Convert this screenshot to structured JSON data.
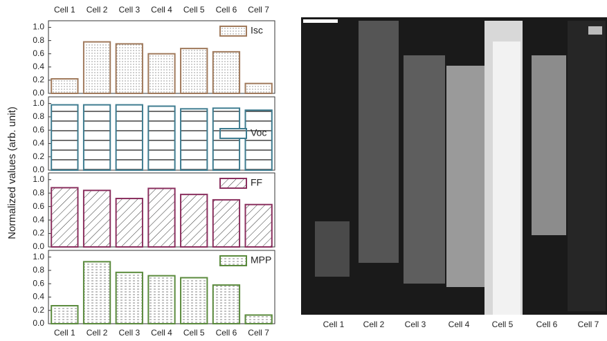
{
  "chart_data": {
    "type": "bar",
    "ylabel": "Normalized values (arb. unit)",
    "categories": [
      "Cell 1",
      "Cell 2",
      "Cell 3",
      "Cell 4",
      "Cell 5",
      "Cell 6",
      "Cell 7"
    ],
    "ylim": [
      0,
      1.1
    ],
    "yticks": [
      {
        "value": 0,
        "label": "0.0"
      },
      {
        "value": 0.2,
        "label": "0.2"
      },
      {
        "value": 0.4,
        "label": "0.4"
      },
      {
        "value": 0.6,
        "label": "0.6"
      },
      {
        "value": 0.8,
        "label": "0.8"
      },
      {
        "value": 1,
        "label": "1.0"
      }
    ],
    "series": [
      {
        "name": "Isc",
        "color": "#a07a5c",
        "pattern": "dots",
        "legend_position": "upper right",
        "values": [
          0.22,
          0.78,
          0.75,
          0.6,
          0.68,
          0.63,
          0.15
        ]
      },
      {
        "name": "Voc",
        "color": "#3d7b8f",
        "pattern": "hlines",
        "legend_position": "center right",
        "values": [
          0.98,
          0.98,
          0.98,
          0.96,
          0.92,
          0.93,
          0.9
        ]
      },
      {
        "name": "FF",
        "color": "#8a2f5e",
        "pattern": "diag",
        "legend_position": "upper right",
        "values": [
          0.88,
          0.84,
          0.72,
          0.87,
          0.78,
          0.7,
          0.63
        ]
      },
      {
        "name": "MPP",
        "color": "#5a8a3c",
        "pattern": "dashes",
        "legend_position": "upper right",
        "values": [
          0.27,
          0.93,
          0.77,
          0.72,
          0.69,
          0.58,
          0.13
        ]
      }
    ]
  }
}
